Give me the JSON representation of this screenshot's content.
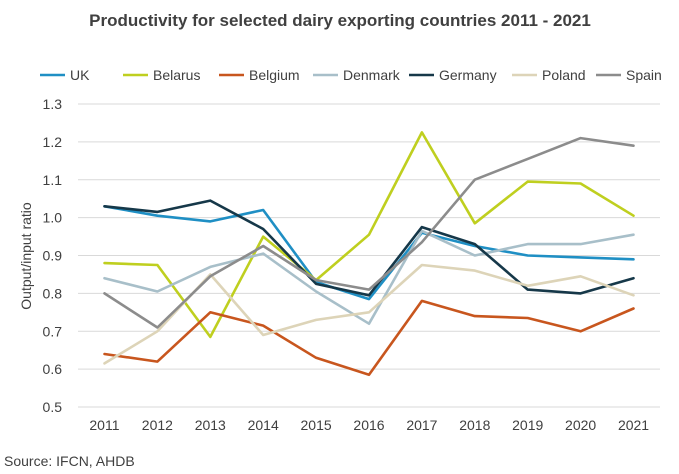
{
  "chart_data": {
    "type": "line",
    "title": "Productivity for selected dairy exporting countries 2011 - 2021",
    "ylabel": "Output/input  ratio",
    "xlabel": "",
    "ylim": [
      0.5,
      1.3
    ],
    "yticks": [
      "0.5",
      "0.6",
      "0.7",
      "0.8",
      "0.9",
      "1.0",
      "1.1",
      "1.2",
      "1.3"
    ],
    "grid": true,
    "legend": "top",
    "categories": [
      "2011",
      "2012",
      "2013",
      "2014",
      "2015",
      "2016",
      "2017",
      "2018",
      "2019",
      "2020",
      "2021"
    ],
    "series": [
      {
        "name": "UK",
        "color": "#1f8fc4",
        "values": [
          1.03,
          1.005,
          0.99,
          1.02,
          0.83,
          0.785,
          0.96,
          0.925,
          0.9,
          0.895,
          0.89
        ]
      },
      {
        "name": "Belarus",
        "color": "#bfcf1f",
        "values": [
          0.88,
          0.875,
          0.685,
          0.95,
          0.835,
          0.955,
          1.225,
          0.985,
          1.095,
          1.09,
          1.005
        ]
      },
      {
        "name": "Belgium",
        "color": "#c8561e",
        "values": [
          0.64,
          0.62,
          0.75,
          0.715,
          0.63,
          0.585,
          0.78,
          0.74,
          0.735,
          0.7,
          0.76
        ]
      },
      {
        "name": "Denmark",
        "color": "#a8bfc9",
        "values": [
          0.84,
          0.805,
          0.87,
          0.905,
          0.805,
          0.72,
          0.965,
          0.9,
          0.93,
          0.93,
          0.955
        ]
      },
      {
        "name": "Germany",
        "color": "#163849",
        "values": [
          1.03,
          1.015,
          1.045,
          0.97,
          0.825,
          0.795,
          0.975,
          0.93,
          0.81,
          0.8,
          0.84
        ]
      },
      {
        "name": "Poland",
        "color": "#ddd4b8",
        "values": [
          0.615,
          0.7,
          0.85,
          0.69,
          0.73,
          0.75,
          0.875,
          0.86,
          0.82,
          0.845,
          0.795
        ]
      },
      {
        "name": "Spain",
        "color": "#8c8c8c",
        "values": [
          0.8,
          0.71,
          0.845,
          0.925,
          0.835,
          0.81,
          0.935,
          1.1,
          1.155,
          1.21,
          1.19
        ]
      }
    ]
  },
  "source": "Source: IFCN, AHDB"
}
